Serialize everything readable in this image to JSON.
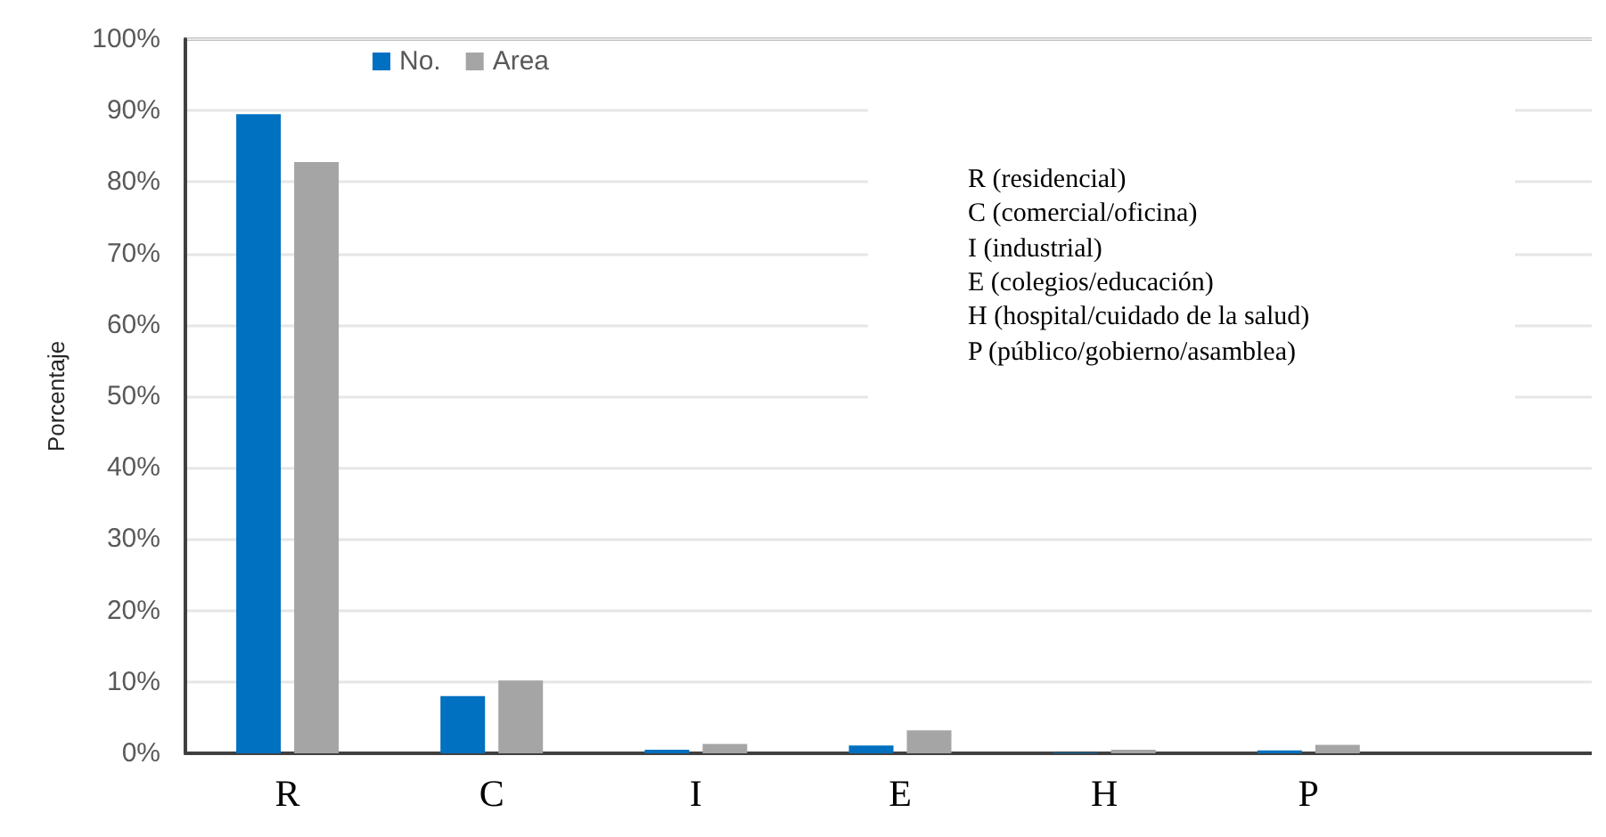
{
  "chart_data": {
    "type": "bar",
    "ylabel": "Porcentaje",
    "categories": [
      "R",
      "C",
      "I",
      "E",
      "H",
      "P",
      null
    ],
    "series": [
      {
        "name": "No.",
        "color": "#0070c0",
        "values": [
          89.5,
          8.0,
          0.5,
          1.1,
          0.1,
          0.4,
          null
        ]
      },
      {
        "name": "Area",
        "color": "#a5a5a5",
        "values": [
          82.8,
          10.2,
          1.3,
          3.2,
          0.5,
          1.2,
          null
        ]
      }
    ],
    "ylim": [
      0,
      100
    ],
    "yticks": [
      {
        "value": 0,
        "label": "0%"
      },
      {
        "value": 10,
        "label": "10%"
      },
      {
        "value": 20,
        "label": "20%"
      },
      {
        "value": 30,
        "label": "30%"
      },
      {
        "value": 40,
        "label": "40%"
      },
      {
        "value": 50,
        "label": "50%"
      },
      {
        "value": 60,
        "label": "60%"
      },
      {
        "value": 70,
        "label": "70%"
      },
      {
        "value": 80,
        "label": "80%"
      },
      {
        "value": 90,
        "label": "90%"
      },
      {
        "value": 100,
        "label": "100%"
      }
    ],
    "grid": "y",
    "legend": "top left",
    "annotations": [
      "R (residencial)",
      "C (comercial/oficina)",
      "I (industrial)",
      "E (colegios/educación)",
      "H (hospital/cuidado de la salud)",
      "P (público/gobierno/asamblea)"
    ]
  }
}
